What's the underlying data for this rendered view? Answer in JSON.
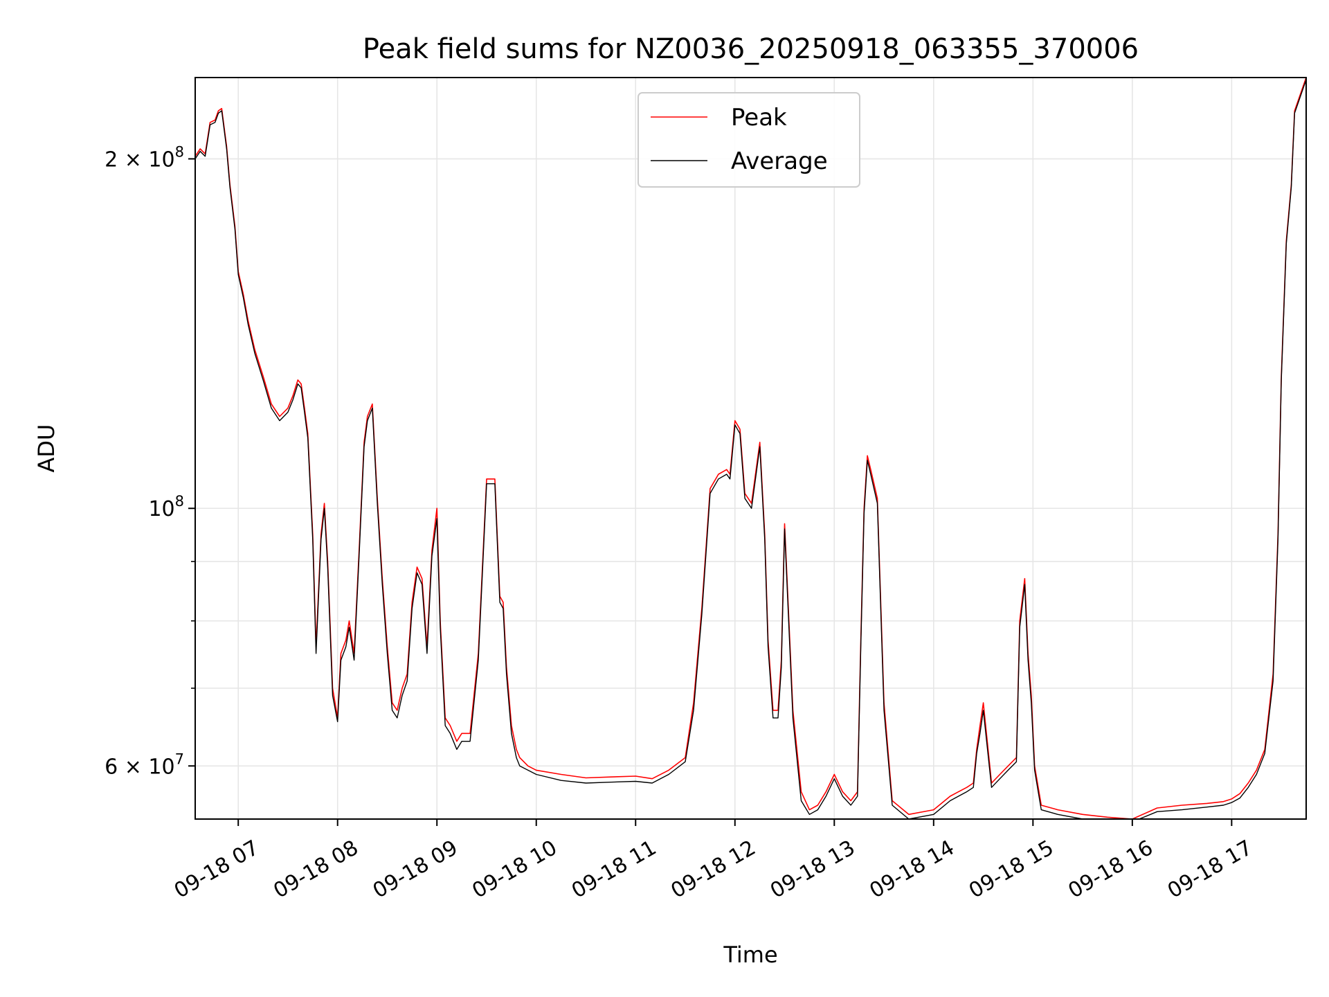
{
  "chart_data": {
    "type": "line",
    "title": "Peak field sums for NZ0036_20250918_063355_370006",
    "xlabel": "Time",
    "ylabel": "ADU",
    "y_scale": "log",
    "ylim": [
      54000000,
      235000000
    ],
    "xlim": [
      "09-18 06:34",
      "09-18 17:45"
    ],
    "grid": true,
    "legend_placement": "upper center",
    "x_ticks": [
      "09-18 07",
      "09-18 08",
      "09-18 09",
      "09-18 10",
      "09-18 11",
      "09-18 12",
      "09-18 13",
      "09-18 14",
      "09-18 15",
      "09-18 16",
      "09-18 17"
    ],
    "y_ticks": [
      {
        "value": 60000000,
        "base": "6 × 10",
        "exp": "7"
      },
      {
        "value": 100000000,
        "base": "10",
        "exp": "8"
      },
      {
        "value": 200000000,
        "base": "2 × 10",
        "exp": "8"
      }
    ],
    "y_minor_ticks": [
      70000000,
      80000000,
      90000000
    ],
    "x": [
      "06:34",
      "06:37",
      "06:40",
      "06:43",
      "06:46",
      "06:48",
      "06:50",
      "06:53",
      "06:55",
      "06:58",
      "07:00",
      "07:03",
      "07:06",
      "07:10",
      "07:15",
      "07:20",
      "07:25",
      "07:30",
      "07:33",
      "07:36",
      "07:38",
      "07:40",
      "07:42",
      "07:45",
      "07:47",
      "07:50",
      "07:52",
      "07:54",
      "07:57",
      "08:00",
      "08:02",
      "08:05",
      "08:07",
      "08:10",
      "08:13",
      "08:16",
      "08:18",
      "08:21",
      "08:24",
      "08:27",
      "08:30",
      "08:33",
      "08:36",
      "08:39",
      "08:42",
      "08:45",
      "08:48",
      "08:51",
      "08:54",
      "08:57",
      "09:00",
      "09:02",
      "09:05",
      "09:08",
      "09:12",
      "09:15",
      "09:20",
      "09:25",
      "09:30",
      "09:35",
      "09:38",
      "09:40",
      "09:42",
      "09:45",
      "09:48",
      "09:50",
      "09:55",
      "10:00",
      "10:15",
      "10:30",
      "10:45",
      "11:00",
      "11:10",
      "11:20",
      "11:30",
      "11:35",
      "11:40",
      "11:45",
      "11:50",
      "11:55",
      "11:57",
      "12:00",
      "12:03",
      "12:06",
      "12:08",
      "12:10",
      "12:12",
      "12:15",
      "12:18",
      "12:20",
      "12:23",
      "12:26",
      "12:28",
      "12:30",
      "12:35",
      "12:40",
      "12:45",
      "12:50",
      "12:55",
      "13:00",
      "13:05",
      "13:10",
      "13:14",
      "13:16",
      "13:18",
      "13:20",
      "13:22",
      "13:26",
      "13:30",
      "13:35",
      "13:45",
      "14:00",
      "14:10",
      "14:15",
      "14:20",
      "14:24",
      "14:26",
      "14:28",
      "14:30",
      "14:35",
      "14:40",
      "14:45",
      "14:50",
      "14:52",
      "14:55",
      "14:57",
      "14:59",
      "15:01",
      "15:05",
      "15:15",
      "15:30",
      "15:45",
      "16:00",
      "16:15",
      "16:30",
      "16:45",
      "16:55",
      "17:00",
      "17:05",
      "17:10",
      "17:15",
      "17:20",
      "17:25",
      "17:28",
      "17:30",
      "17:33",
      "17:36",
      "17:38",
      "17:45"
    ],
    "series": [
      {
        "name": "Peak",
        "color": "#ff0000",
        "values": [
          201000000,
          204000000,
          202000000,
          215000000,
          216000000,
          220000000,
          221000000,
          205000000,
          190000000,
          175000000,
          160000000,
          153000000,
          145000000,
          137000000,
          130000000,
          123000000,
          120000000,
          122000000,
          125000000,
          129000000,
          128000000,
          122000000,
          116000000,
          95000000,
          76000000,
          95000000,
          101000000,
          90000000,
          70000000,
          66000000,
          75000000,
          77000000,
          80000000,
          75000000,
          92000000,
          114000000,
          120000000,
          123000000,
          102000000,
          87000000,
          76000000,
          68000000,
          67000000,
          70000000,
          72000000,
          83000000,
          89000000,
          87000000,
          76000000,
          92000000,
          100000000,
          80000000,
          66000000,
          65000000,
          63000000,
          64000000,
          64000000,
          75000000,
          106000000,
          106000000,
          84000000,
          83000000,
          73000000,
          65000000,
          62000000,
          61000000,
          60000000,
          59500000,
          59000000,
          58600000,
          58700000,
          58800000,
          58500000,
          59500000,
          61000000,
          68000000,
          82000000,
          104000000,
          107000000,
          108000000,
          107000000,
          119000000,
          117000000,
          103000000,
          102000000,
          101000000,
          106000000,
          114000000,
          95000000,
          77000000,
          67000000,
          67000000,
          74000000,
          97000000,
          67000000,
          57000000,
          55000000,
          55500000,
          57000000,
          59000000,
          57000000,
          56000000,
          57000000,
          77000000,
          100000000,
          111000000,
          108000000,
          102000000,
          68000000,
          56000000,
          54500000,
          55000000,
          56500000,
          57000000,
          57500000,
          58000000,
          62000000,
          65000000,
          68000000,
          58000000,
          59000000,
          60000000,
          61000000,
          80000000,
          87000000,
          75000000,
          69000000,
          60000000,
          55500000,
          55000000,
          54500000,
          54200000,
          54000000,
          55200000,
          55500000,
          55700000,
          55900000,
          56200000,
          56800000,
          58000000,
          59500000,
          62000000,
          72000000,
          95000000,
          130000000,
          170000000,
          190000000,
          220000000,
          235000000
        ]
      },
      {
        "name": "Average",
        "color": "#000000",
        "values": [
          200000000,
          203000000,
          201000000,
          214000000,
          215000000,
          219000000,
          220000000,
          204000000,
          189000000,
          174000000,
          159000000,
          152000000,
          144000000,
          136000000,
          129000000,
          122000000,
          119000000,
          121000000,
          124000000,
          128000000,
          127000000,
          121000000,
          115000000,
          94000000,
          75000000,
          94000000,
          100000000,
          89000000,
          69000000,
          65500000,
          74000000,
          76000000,
          79000000,
          74000000,
          91000000,
          113000000,
          119000000,
          122000000,
          101000000,
          86000000,
          75000000,
          67000000,
          66000000,
          69000000,
          71000000,
          82000000,
          88000000,
          86000000,
          75000000,
          91000000,
          98000000,
          79000000,
          65000000,
          64000000,
          62000000,
          63000000,
          63000000,
          74000000,
          105000000,
          105000000,
          83000000,
          82000000,
          72000000,
          64000000,
          61000000,
          60000000,
          59500000,
          59000000,
          58300000,
          58000000,
          58100000,
          58200000,
          58000000,
          59000000,
          60500000,
          67000000,
          81000000,
          103000000,
          106000000,
          107000000,
          106000000,
          118000000,
          116000000,
          102000000,
          101000000,
          100000000,
          105000000,
          113000000,
          94000000,
          76000000,
          66000000,
          66000000,
          73000000,
          96000000,
          66000000,
          56000000,
          54500000,
          55000000,
          56500000,
          58500000,
          56500000,
          55500000,
          56500000,
          76000000,
          99000000,
          110000000,
          107000000,
          101000000,
          67000000,
          55500000,
          54000000,
          54500000,
          56000000,
          56500000,
          57000000,
          57500000,
          61500000,
          64000000,
          67000000,
          57500000,
          58500000,
          59500000,
          60500000,
          79000000,
          86000000,
          74000000,
          68000000,
          59500000,
          55000000,
          54500000,
          54000000,
          53800000,
          53700000,
          54800000,
          55000000,
          55300000,
          55500000,
          55800000,
          56300000,
          57500000,
          59000000,
          61500000,
          71000000,
          94000000,
          129000000,
          169000000,
          189000000,
          219000000,
          234000000
        ]
      }
    ]
  }
}
